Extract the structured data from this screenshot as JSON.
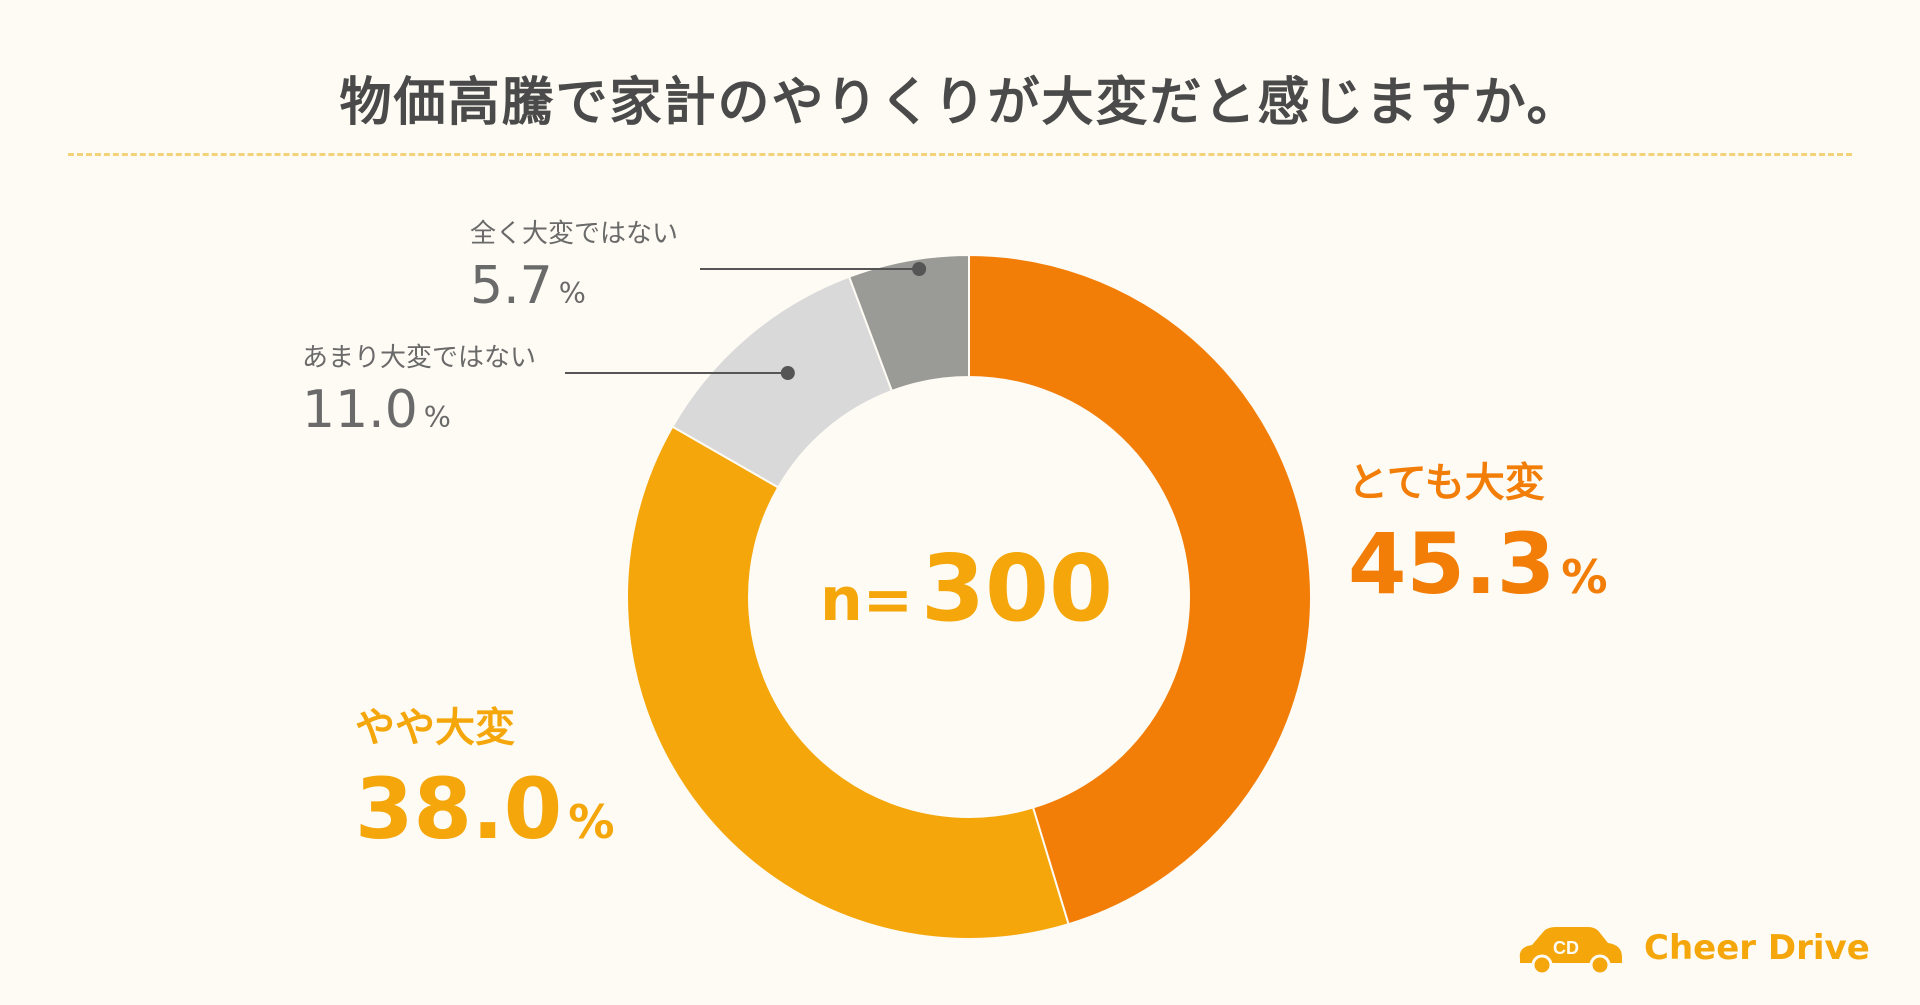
{
  "title": "物価高騰で家計のやりくりが大変だと感じますか。",
  "center_label": {
    "n": "n=",
    "value": "300"
  },
  "labels": {
    "totemo": {
      "name": "とても大変",
      "value": "45.3",
      "unit": "%"
    },
    "yaya": {
      "name": "やや大変",
      "value": "38.0",
      "unit": "%"
    },
    "amari": {
      "name": "あまり大変ではない",
      "value": "11.0",
      "unit": "%"
    },
    "mattaku": {
      "name": "全く大変ではない",
      "value": "5.7",
      "unit": "%"
    }
  },
  "logo": {
    "mark": "CD",
    "name": "Cheer Drive",
    "icon": "car-icon"
  },
  "colors": {
    "totemo": "#f27d07",
    "yaya": "#f4a60a",
    "amari": "#d9d9d9",
    "mattaku": "#9a9b96",
    "text_dark": "#4a4a4a",
    "accent_dash": "#f3d27a"
  },
  "chart_data": {
    "type": "pie",
    "donut": true,
    "total_n": 300,
    "series": [
      {
        "name": "とても大変",
        "value": 45.3,
        "color": "#f27d07"
      },
      {
        "name": "やや大変",
        "value": 38.0,
        "color": "#f4a60a"
      },
      {
        "name": "あまり大変ではない",
        "value": 11.0,
        "color": "#d9d9d9"
      },
      {
        "name": "全く大変ではない",
        "value": 5.7,
        "color": "#9a9b96"
      }
    ]
  }
}
